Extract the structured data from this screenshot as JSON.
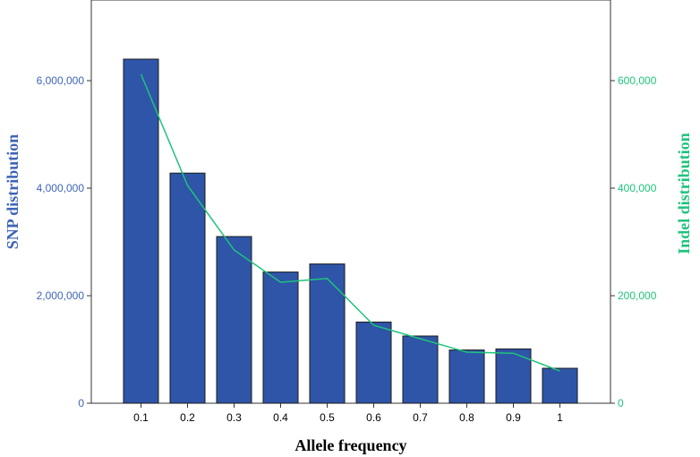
{
  "chart_data": {
    "type": "bar",
    "categories": [
      "0.1",
      "0.2",
      "0.3",
      "0.4",
      "0.5",
      "0.6",
      "0.7",
      "0.8",
      "0.9",
      "1"
    ],
    "series": [
      {
        "type": "bar",
        "axis": "left",
        "values": [
          6400000,
          4280000,
          3100000,
          2440000,
          2590000,
          1510000,
          1250000,
          990000,
          1010000,
          650000
        ],
        "color": "#2E55A8"
      },
      {
        "type": "line",
        "axis": "right",
        "values": [
          612000,
          405000,
          285000,
          225000,
          232000,
          145000,
          120000,
          95000,
          93000,
          60000
        ],
        "color": "#1FC37B"
      }
    ],
    "xlabel": "Allele frequency",
    "ylabel_left": "SNP distribution",
    "ylabel_right": "Indel distribution",
    "ylim_left": [
      0,
      7500000
    ],
    "ylim_right": [
      0,
      750000
    ],
    "yticks_left": [
      "0",
      "2,000,000",
      "4,000,000",
      "6,000,000"
    ],
    "yticks_right": [
      "0",
      "200,000",
      "400,000",
      "600,000"
    ],
    "left_axis_color": "#3F64B6",
    "right_axis_color": "#1FC37B",
    "grid": false
  }
}
